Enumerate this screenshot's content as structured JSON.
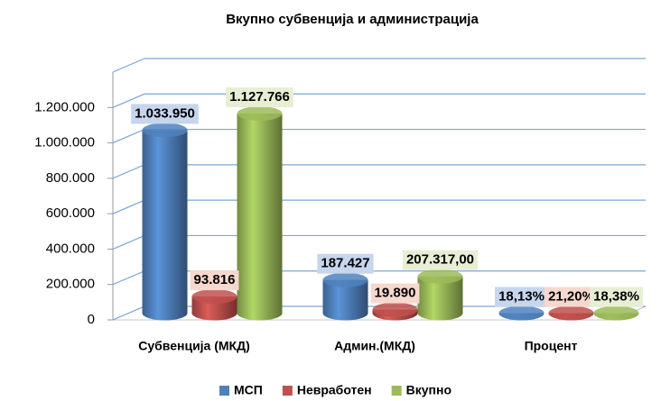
{
  "chart_data": {
    "type": "bar",
    "title": "Вкупно субвенција и администрација",
    "categories": [
      "Субвенција (МКД)",
      "Админ.(МКД)",
      "Процент"
    ],
    "series": [
      {
        "name": "МСП",
        "color": "#4f81bd",
        "values": [
          1033950,
          187427,
          18.13
        ],
        "value_labels": [
          "1.033.950",
          "187.427",
          "18,13%"
        ]
      },
      {
        "name": "Невработен",
        "color": "#c0504d",
        "values": [
          93816,
          19890,
          21.2
        ],
        "value_labels": [
          "93.816",
          "19.890",
          "21,20%"
        ]
      },
      {
        "name": "Вкупно",
        "color": "#9bbb59",
        "values": [
          1127766,
          207317,
          18.38
        ],
        "value_labels": [
          "1.127.766",
          "207.317,00",
          "18,38%"
        ]
      }
    ],
    "ylim": [
      0,
      1400000
    ],
    "yticks": [
      0,
      {
        "value": 200000,
        "label": "200.000"
      },
      {
        "value": 400000,
        "label": "400.000"
      },
      {
        "value": 600000,
        "label": "600.000"
      },
      {
        "value": 800000,
        "label": "800.000"
      },
      {
        "value": 1000000,
        "label": "1.000.000"
      },
      {
        "value": 1200000,
        "label": "1.200.000"
      }
    ],
    "grid": true,
    "legend": "bottom"
  }
}
